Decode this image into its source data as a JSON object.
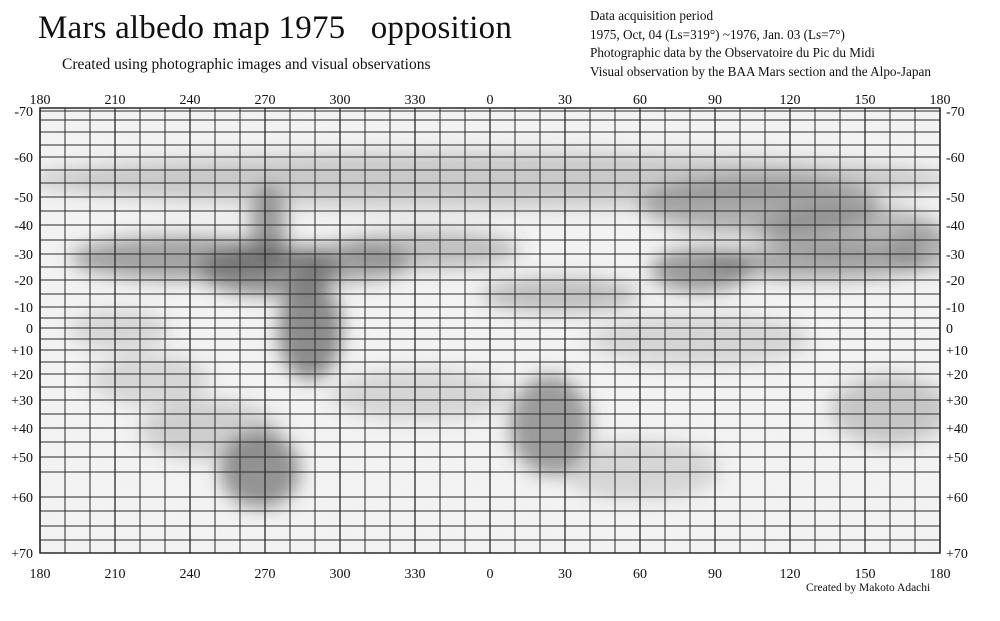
{
  "title": "Mars albedo map 1975   opposition",
  "subtitle": "Created using photographic images and visual observations",
  "info": {
    "heading": "Data acquisition period",
    "period": "1975, Oct, 04 (Ls=319°) ~1976, Jan. 03 (Ls=7°)",
    "photo_source": "Photographic data by the Observatoire du Pic du Midi",
    "visual_source": "Visual observation by the BAA Mars section and the Alpo-Japan"
  },
  "credit": "Created by Makoto Adachi",
  "longitude_labels": [
    "180",
    "210",
    "240",
    "270",
    "300",
    "330",
    "0",
    "30",
    "60",
    "90",
    "120",
    "150",
    "180"
  ],
  "latitude_labels": [
    "-70",
    "-60",
    "-50",
    "-40",
    "-30",
    "-20",
    "-10",
    "0",
    "+10",
    "+20",
    "+30",
    "+40",
    "+50",
    "+60",
    "+70"
  ],
  "colors": {
    "grid": "#2a2a2a",
    "paper": "#fafafa",
    "shading": "#5a5a5a"
  }
}
